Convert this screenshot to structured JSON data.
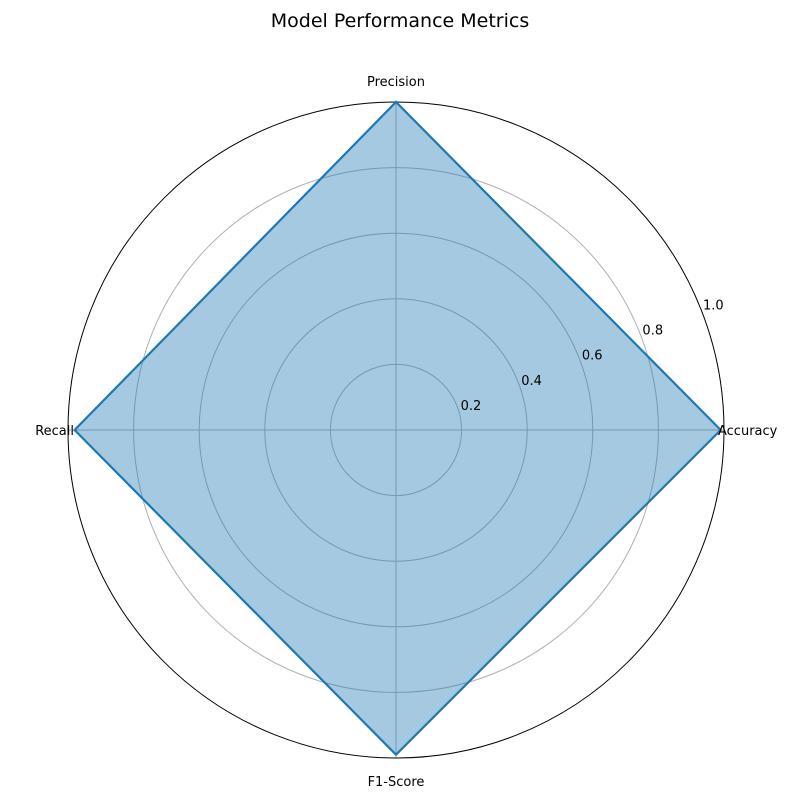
{
  "chart_data": {
    "type": "radar",
    "title": "Model Performance Metrics",
    "categories": [
      "Accuracy",
      "Precision",
      "Recall",
      "F1-Score"
    ],
    "series": [
      {
        "values": [
          0.99,
          1.0,
          0.98,
          0.99
        ]
      }
    ],
    "rlim": [
      0,
      1.0
    ],
    "rticks": [
      0.2,
      0.4,
      0.6,
      0.8,
      1.0
    ],
    "rtick_labels": [
      "0.2",
      "0.4",
      "0.6",
      "0.8",
      "1.0"
    ],
    "grid": true,
    "colors": {
      "line": "#1f77b4",
      "fill": "#1f77b4",
      "grid": "#b0b0b0",
      "frame": "#000000"
    }
  }
}
